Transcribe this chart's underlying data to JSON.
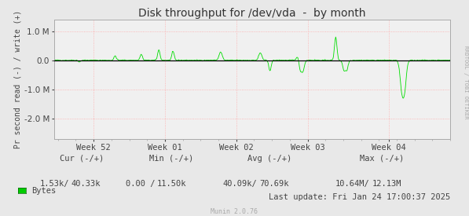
{
  "title": "Disk throughput for /dev/vda  -  by month",
  "ylabel": "Pr second read (-) / write (+)",
  "background_color": "#e8e8e8",
  "plot_background_color": "#f0f0f0",
  "grid_color": "#ffaaaa",
  "line_color": "#00dd00",
  "zero_line_color": "#000000",
  "border_color": "#aaaaaa",
  "x_tick_labels": [
    "Week 52",
    "Week 01",
    "Week 02",
    "Week 03",
    "Week 04"
  ],
  "x_tick_positions": [
    0.1,
    0.28,
    0.46,
    0.64,
    0.845
  ],
  "ylim": [
    -2700000,
    1400000
  ],
  "yticks": [
    -2000000,
    -1000000,
    0.0,
    1000000
  ],
  "ytick_labels": [
    "-2.0 M",
    "-1.0 M",
    "0.0",
    "1.0 M"
  ],
  "munin_version": "Munin 2.0.76",
  "rrdtool_label": "RRDTOOL / TOBI OETIKER",
  "legend_color": "#00cc00",
  "legend_label": "Bytes",
  "title_fontsize": 10,
  "axis_fontsize": 7.5,
  "footer_fontsize": 7.5,
  "cur_neg": "1.53k/",
  "cur_pos": "40.33k",
  "min_neg": "0.00 /",
  "min_pos": "11.50k",
  "avg_neg": "40.09k/",
  "avg_pos": "70.69k",
  "max_neg": "10.64M/",
  "max_pos": "12.13M",
  "last_update": "Last update: Fri Jan 24 17:00:37 2025"
}
